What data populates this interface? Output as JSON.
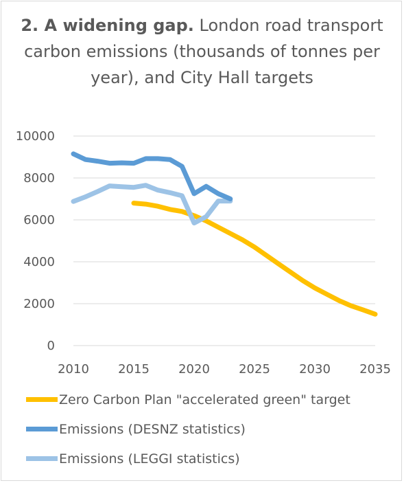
{
  "chart_data": {
    "type": "line",
    "title_bold": "2. A widening gap.",
    "title_rest": "London road transport carbon emissions (thousands of tonnes per year), and City Hall targets",
    "xlabel": "",
    "ylabel": "",
    "xlim": [
      2010,
      2035
    ],
    "ylim": [
      0,
      10000
    ],
    "x_ticks": [
      "2010",
      "2015",
      "2020",
      "2025",
      "2030",
      "2035"
    ],
    "y_ticks": [
      "0",
      "2000",
      "4000",
      "6000",
      "8000",
      "10000"
    ],
    "grid": "horizontal",
    "legend_position": "bottom",
    "series": [
      {
        "name": "Zero Carbon Plan \"accelerated green\" target",
        "color": "#FFC000",
        "x": [
          2015,
          2016,
          2017,
          2018,
          2019,
          2020,
          2021,
          2022,
          2023,
          2024,
          2025,
          2026,
          2027,
          2028,
          2029,
          2030,
          2031,
          2032,
          2033,
          2034,
          2035
        ],
        "y": [
          6800,
          6750,
          6650,
          6500,
          6400,
          6200,
          5950,
          5650,
          5350,
          5050,
          4700,
          4300,
          3900,
          3500,
          3100,
          2750,
          2450,
          2150,
          1900,
          1700,
          1500
        ]
      },
      {
        "name": "Emissions (DESNZ statistics)",
        "color": "#5B9BD5",
        "x": [
          2010,
          2011,
          2012,
          2013,
          2014,
          2015,
          2016,
          2017,
          2018,
          2019,
          2020,
          2021,
          2022,
          2023
        ],
        "y": [
          9150,
          8880,
          8800,
          8700,
          8720,
          8700,
          8920,
          8920,
          8880,
          8550,
          7250,
          7600,
          7250,
          7000
        ]
      },
      {
        "name": "Emissions (LEGGI statistics)",
        "color": "#9DC3E6",
        "x": [
          2010,
          2011,
          2012,
          2013,
          2014,
          2015,
          2016,
          2017,
          2018,
          2019,
          2020,
          2021,
          2022,
          2023
        ],
        "y": [
          6880,
          7100,
          7350,
          7620,
          7580,
          7550,
          7650,
          7420,
          7300,
          7150,
          5850,
          6150,
          6900,
          6900
        ]
      }
    ]
  }
}
